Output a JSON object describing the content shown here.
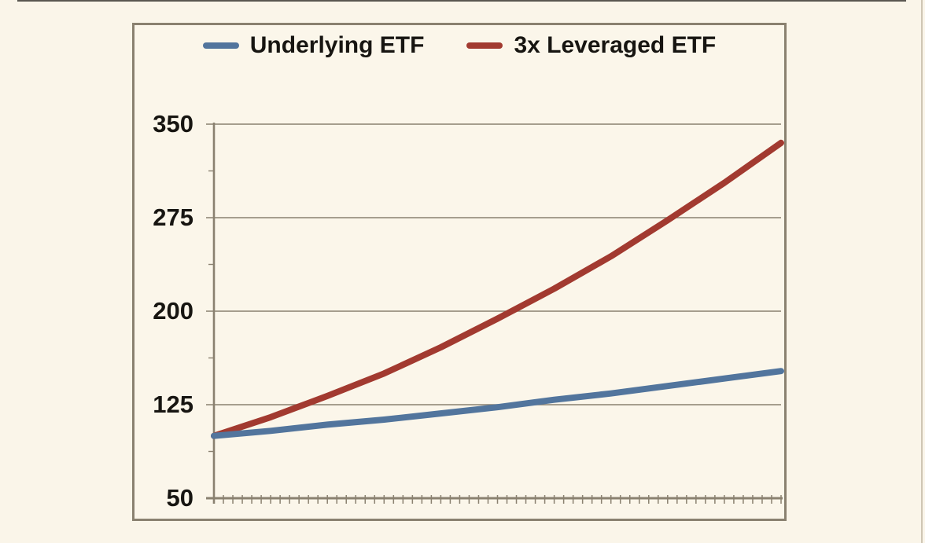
{
  "chart_data": {
    "type": "line",
    "title": "",
    "xlabel": "",
    "ylabel": "",
    "x": [
      0,
      6,
      12,
      18,
      24,
      30,
      36,
      42,
      48,
      54,
      60
    ],
    "x_axis": {
      "tick_labels_visible": false,
      "minor_tick_count": 60
    },
    "series": [
      {
        "name": "Underlying ETF",
        "color": "#52759D",
        "values": [
          100,
          104,
          109,
          113,
          118,
          123,
          129,
          134,
          140,
          146,
          152
        ]
      },
      {
        "name": "3x Leveraged ETF",
        "color": "#A23A30",
        "values": [
          100,
          115,
          132,
          150,
          171,
          194,
          218,
          244,
          273,
          303,
          335
        ]
      }
    ],
    "ylim": [
      50,
      350
    ],
    "yticks": [
      350,
      275,
      200,
      125,
      50
    ],
    "grid": "horizontal",
    "legend_position": "top-center"
  },
  "colors": {
    "background": "#FAF5E9",
    "frame_and_grid": "#8A8170",
    "text": "#171511",
    "underlying_line": "#52759D",
    "leveraged_line": "#A23A30"
  }
}
